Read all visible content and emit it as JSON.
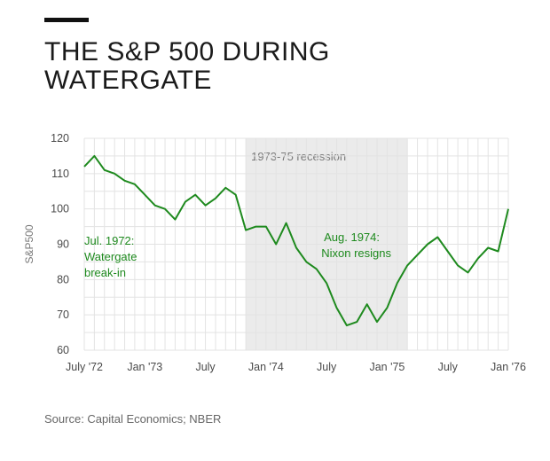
{
  "header": {
    "title_line1": "THE S&P 500 DURING",
    "title_line2": "WATERGATE"
  },
  "source": "Source: Capital Economics; NBER",
  "colors": {
    "line": "#1e8a1e",
    "annotation": "#1e8a1e",
    "recession_band": "#ebebeb",
    "grid": "#e3e3e3",
    "accent_bar": "#111111"
  },
  "chart_data": {
    "type": "line",
    "xlabel": "",
    "ylabel": "S&P500",
    "ylim": [
      60,
      120
    ],
    "y_ticks": [
      60,
      70,
      80,
      90,
      100,
      110,
      120
    ],
    "x_range": [
      "1972-07",
      "1976-01"
    ],
    "x_ticks": [
      {
        "date": "1972-07",
        "label": "July '72"
      },
      {
        "date": "1973-01",
        "label": "Jan '73"
      },
      {
        "date": "1973-07",
        "label": "July"
      },
      {
        "date": "1974-01",
        "label": "Jan '74"
      },
      {
        "date": "1974-07",
        "label": "July"
      },
      {
        "date": "1975-01",
        "label": "Jan '75"
      },
      {
        "date": "1975-07",
        "label": "July"
      },
      {
        "date": "1976-01",
        "label": "Jan '76"
      }
    ],
    "grid": true,
    "shaded_region": {
      "label": "1973-75 recession",
      "start": "1973-11",
      "end": "1975-03"
    },
    "series": [
      {
        "points": [
          [
            "1972-07",
            112
          ],
          [
            "1972-08",
            115
          ],
          [
            "1972-09",
            111
          ],
          [
            "1972-10",
            110
          ],
          [
            "1972-11",
            108
          ],
          [
            "1972-12",
            107
          ],
          [
            "1973-01",
            104
          ],
          [
            "1973-02",
            101
          ],
          [
            "1973-03",
            100
          ],
          [
            "1973-04",
            97
          ],
          [
            "1973-05",
            102
          ],
          [
            "1973-06",
            104
          ],
          [
            "1973-07",
            101
          ],
          [
            "1973-08",
            103
          ],
          [
            "1973-09",
            106
          ],
          [
            "1973-10",
            104
          ],
          [
            "1973-11",
            94
          ],
          [
            "1973-12",
            95
          ],
          [
            "1974-01",
            95
          ],
          [
            "1974-02",
            90
          ],
          [
            "1974-03",
            96
          ],
          [
            "1974-04",
            89
          ],
          [
            "1974-05",
            85
          ],
          [
            "1974-06",
            83
          ],
          [
            "1974-07",
            79
          ],
          [
            "1974-08",
            72
          ],
          [
            "1974-09",
            67
          ],
          [
            "1974-10",
            68
          ],
          [
            "1974-11",
            73
          ],
          [
            "1974-12",
            68
          ],
          [
            "1975-01",
            72
          ],
          [
            "1975-02",
            79
          ],
          [
            "1975-03",
            84
          ],
          [
            "1975-04",
            87
          ],
          [
            "1975-05",
            90
          ],
          [
            "1975-06",
            92
          ],
          [
            "1975-07",
            88
          ],
          [
            "1975-08",
            84
          ],
          [
            "1975-09",
            82
          ],
          [
            "1975-10",
            86
          ],
          [
            "1975-11",
            89
          ],
          [
            "1975-12",
            88
          ],
          [
            "1976-01",
            100
          ]
        ]
      }
    ],
    "annotations": [
      {
        "text": [
          "Jul. 1972:",
          "Watergate",
          "break-in"
        ]
      },
      {
        "text": [
          "Aug. 1974:",
          "Nixon resigns"
        ]
      }
    ]
  }
}
